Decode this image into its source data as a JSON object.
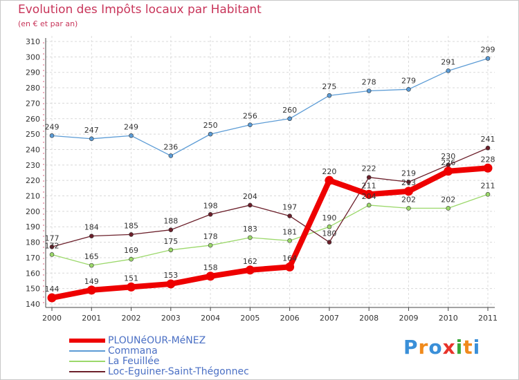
{
  "chart_data": {
    "type": "line",
    "title": "Evolution des Impôts locaux par Habitant",
    "subtitle": "(en € et par an)",
    "xlabel": "",
    "ylabel": "",
    "ylim": [
      140,
      310
    ],
    "yticks": [
      140,
      150,
      160,
      170,
      180,
      190,
      200,
      210,
      220,
      230,
      240,
      250,
      260,
      270,
      280,
      290,
      300,
      310
    ],
    "categories": [
      "2000",
      "2001",
      "2002",
      "2003",
      "2004",
      "2005",
      "2006",
      "2007",
      "2008",
      "2009",
      "2010",
      "2011"
    ],
    "series": [
      {
        "name": "PLOUNéOUR-MéNEZ",
        "color": "#ee0000",
        "values": [
          144,
          149,
          151,
          153,
          158,
          162,
          164,
          220,
          211,
          213,
          226,
          228
        ]
      },
      {
        "name": "Commana",
        "color": "#5b9bd5",
        "values": [
          249,
          247,
          249,
          236,
          250,
          256,
          260,
          275,
          278,
          279,
          291,
          299
        ]
      },
      {
        "name": "La Feuillée",
        "color": "#9bd86a",
        "values": [
          172,
          165,
          169,
          175,
          178,
          183,
          181,
          190,
          204,
          202,
          202,
          211
        ]
      },
      {
        "name": "Loc-Eguiner-Saint-Thégonnec",
        "color": "#6b1f2a",
        "values": [
          177,
          184,
          185,
          188,
          198,
          204,
          197,
          180,
          222,
          219,
          230,
          241
        ]
      }
    ],
    "legend_position": "bottom-left"
  },
  "logo": {
    "text": "Proxiti",
    "letters": [
      "P",
      "r",
      "o",
      "x",
      "i",
      "t",
      "i"
    ],
    "colors": [
      "#3a8fd8",
      "#f08a1c",
      "#3a8fd8",
      "#e8332a",
      "#3aa83a",
      "#f08a1c",
      "#3a8fd8"
    ]
  }
}
